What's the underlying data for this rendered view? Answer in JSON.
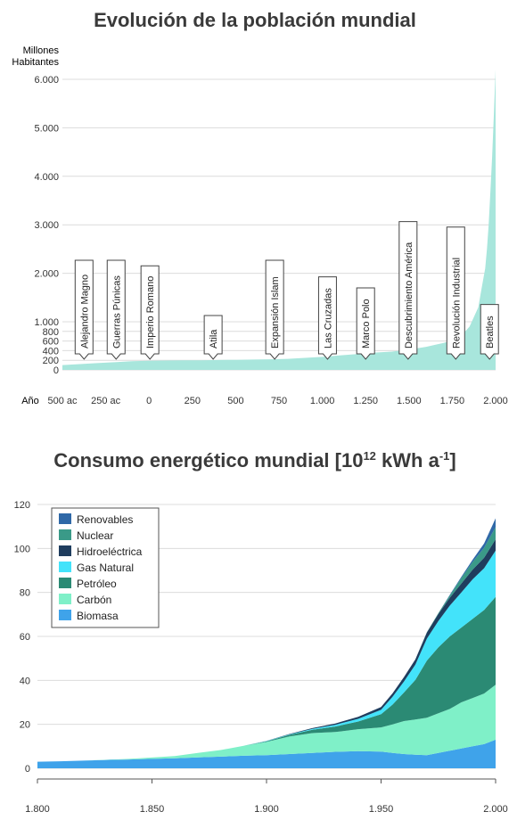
{
  "chart_data": [
    {
      "type": "area",
      "title": "Evolución de la población mundial",
      "ylabel_lines": [
        "Millones",
        "Habitantes"
      ],
      "xlabel": "Año",
      "color": "#a8e6dc",
      "yticks": [
        {
          "value": 0,
          "label": "0"
        },
        {
          "value": 200,
          "label": "200"
        },
        {
          "value": 400,
          "label": "400"
        },
        {
          "value": 600,
          "label": "600"
        },
        {
          "value": 800,
          "label": "800"
        },
        {
          "value": 1000,
          "label": "1.000"
        },
        {
          "value": 2000,
          "label": "2.000"
        },
        {
          "value": 3000,
          "label": "3.000"
        },
        {
          "value": 4000,
          "label": "4.000"
        },
        {
          "value": 5000,
          "label": "5.000"
        },
        {
          "value": 6000,
          "label": "6.000"
        }
      ],
      "xticks": [
        {
          "value": -500,
          "label": "500 ac"
        },
        {
          "value": -250,
          "label": "250 ac"
        },
        {
          "value": 0,
          "label": "0"
        },
        {
          "value": 250,
          "label": "250"
        },
        {
          "value": 500,
          "label": "500"
        },
        {
          "value": 750,
          "label": "750"
        },
        {
          "value": 1000,
          "label": "1.000"
        },
        {
          "value": 1250,
          "label": "1.250"
        },
        {
          "value": 1500,
          "label": "1.500"
        },
        {
          "value": 1750,
          "label": "1.750"
        },
        {
          "value": 2000,
          "label": "2.000"
        }
      ],
      "xlim": [
        -500,
        2000
      ],
      "ylim": [
        0,
        6200
      ],
      "x": [
        -500,
        -400,
        -300,
        -200,
        -100,
        0,
        100,
        200,
        300,
        400,
        500,
        600,
        700,
        800,
        900,
        1000,
        1100,
        1200,
        1300,
        1400,
        1500,
        1600,
        1650,
        1700,
        1750,
        1800,
        1850,
        1900,
        1920,
        1940,
        1950,
        1960,
        1970,
        1980,
        1990,
        2000
      ],
      "y": [
        100,
        120,
        140,
        160,
        180,
        190,
        195,
        200,
        200,
        205,
        210,
        215,
        220,
        230,
        250,
        270,
        300,
        330,
        360,
        380,
        420,
        480,
        520,
        560,
        610,
        700,
        900,
        1300,
        1700,
        2100,
        2500,
        3000,
        3700,
        4400,
        5300,
        6200
      ],
      "events": [
        {
          "label": "Alejandro Magno",
          "x": -375
        },
        {
          "label": "Guerras Púnicas",
          "x": -190
        },
        {
          "label": "Imperio Romano",
          "x": 5
        },
        {
          "label": "Atila",
          "x": 370
        },
        {
          "label": "Expansión Islam",
          "x": 725
        },
        {
          "label": "Las Cruzadas",
          "x": 1030
        },
        {
          "label": "Marco Polo",
          "x": 1250
        },
        {
          "label": "Descubrimiento América",
          "x": 1495
        },
        {
          "label": "Revolución Industrial",
          "x": 1770
        },
        {
          "label": "Beatles",
          "x": 1965
        }
      ]
    },
    {
      "type": "area",
      "stacked": true,
      "title": "Consumo energético mundial [10",
      "title_sup1": "12",
      "title_mid": " kWh a",
      "title_sup2": "-1",
      "title_end": "]",
      "xlim": [
        1800,
        2000
      ],
      "ylim": [
        0,
        125
      ],
      "yticks": [
        0,
        20,
        40,
        60,
        80,
        100,
        120
      ],
      "xticks": [
        {
          "value": 1800,
          "label": "1.800"
        },
        {
          "value": 1850,
          "label": "1.850"
        },
        {
          "value": 1900,
          "label": "1.900"
        },
        {
          "value": 1950,
          "label": "1.950"
        },
        {
          "value": 2000,
          "label": "2.000"
        }
      ],
      "legend_position": "top-left",
      "x": [
        1800,
        1810,
        1820,
        1830,
        1840,
        1850,
        1860,
        1870,
        1880,
        1890,
        1900,
        1910,
        1920,
        1930,
        1940,
        1950,
        1955,
        1960,
        1965,
        1970,
        1975,
        1980,
        1985,
        1990,
        1995,
        2000
      ],
      "series": [
        {
          "name": "Biomasa",
          "color": "#3fa3ea",
          "values": [
            3,
            3.2,
            3.5,
            3.8,
            4,
            4.3,
            4.6,
            5,
            5.3,
            5.7,
            6,
            6.5,
            7,
            7.5,
            7.8,
            7.6,
            7,
            6.5,
            6.2,
            6,
            7,
            8,
            9,
            10,
            11,
            13
          ]
        },
        {
          "name": "Carbón",
          "color": "#7ff0c8",
          "values": [
            0,
            0,
            0,
            0.1,
            0.3,
            0.6,
            1,
            2,
            3,
            4.5,
            6,
            8,
            9,
            9,
            10,
            11,
            13,
            15,
            16,
            17,
            18,
            19,
            21,
            22,
            23,
            25
          ]
        },
        {
          "name": "Petróleo",
          "color": "#2b8a74",
          "values": [
            0,
            0,
            0,
            0,
            0,
            0,
            0,
            0,
            0,
            0,
            0.3,
            0.7,
            1.5,
            2.5,
            3.5,
            6,
            9,
            13,
            18,
            26,
            30,
            33,
            34,
            36,
            38,
            40
          ]
        },
        {
          "name": "Gas Natural",
          "color": "#43e3fa",
          "values": [
            0,
            0,
            0,
            0,
            0,
            0,
            0,
            0,
            0,
            0,
            0.1,
            0.2,
            0.4,
            0.8,
            1.2,
            2,
            3.5,
            5,
            7,
            10,
            12,
            14,
            16,
            18,
            19,
            21
          ]
        },
        {
          "name": "Hidroeléctrica",
          "color": "#1f3d5e",
          "values": [
            0,
            0,
            0,
            0,
            0,
            0,
            0,
            0,
            0,
            0,
            0.1,
            0.2,
            0.4,
            0.6,
            0.9,
            1.3,
            1.6,
            2,
            2.4,
            2.8,
            3.2,
            3.6,
            4,
            4.4,
            4.8,
            5.2
          ]
        },
        {
          "name": "Nuclear",
          "color": "#3a9a88",
          "values": [
            0,
            0,
            0,
            0,
            0,
            0,
            0,
            0,
            0,
            0,
            0,
            0,
            0,
            0,
            0,
            0,
            0,
            0,
            0,
            0.1,
            0.4,
            1,
            2.5,
            3.5,
            4.5,
            5.5
          ]
        },
        {
          "name": "Renovables",
          "color": "#2f68a7",
          "values": [
            0,
            0,
            0,
            0,
            0,
            0,
            0,
            0,
            0,
            0,
            0,
            0,
            0,
            0,
            0,
            0,
            0,
            0,
            0,
            0,
            0,
            0.3,
            0.6,
            1,
            2,
            4
          ]
        }
      ],
      "legend_order": [
        "Renovables",
        "Nuclear",
        "Hidroeléctrica",
        "Gas Natural",
        "Petróleo",
        "Carbón",
        "Biomasa"
      ]
    }
  ]
}
